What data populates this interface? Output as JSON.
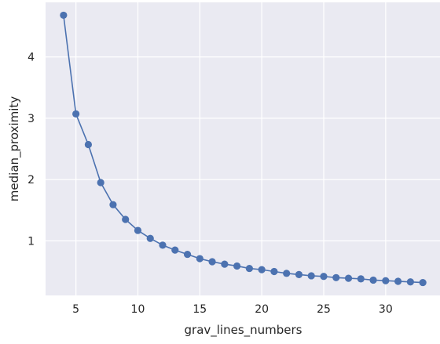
{
  "chart_data": {
    "type": "line",
    "title": "",
    "xlabel": "grav_lines_numbers",
    "ylabel": "median_proximity",
    "xlim": [
      2.55,
      34.45
    ],
    "ylim": [
      0.11,
      4.89
    ],
    "xticks": [
      5,
      10,
      15,
      20,
      25,
      30
    ],
    "yticks": [
      1,
      2,
      3,
      4
    ],
    "grid": true,
    "legend": "none",
    "series": [
      {
        "color": "#4c72b0",
        "marker": "circle",
        "x": [
          4,
          5,
          6,
          7,
          8,
          9,
          10,
          11,
          12,
          13,
          14,
          15,
          16,
          17,
          18,
          19,
          20,
          21,
          22,
          23,
          24,
          25,
          26,
          27,
          28,
          29,
          30,
          31,
          32,
          33
        ],
        "y": [
          4.68,
          3.07,
          2.57,
          1.95,
          1.59,
          1.35,
          1.17,
          1.04,
          0.93,
          0.85,
          0.78,
          0.71,
          0.66,
          0.62,
          0.59,
          0.55,
          0.53,
          0.5,
          0.47,
          0.45,
          0.43,
          0.42,
          0.4,
          0.39,
          0.38,
          0.36,
          0.35,
          0.34,
          0.33,
          0.32
        ]
      }
    ]
  },
  "colors": {
    "plot_background": "#eaeaf2",
    "grid": "#ffffff",
    "text": "#262626",
    "series": "#4c72b0"
  }
}
